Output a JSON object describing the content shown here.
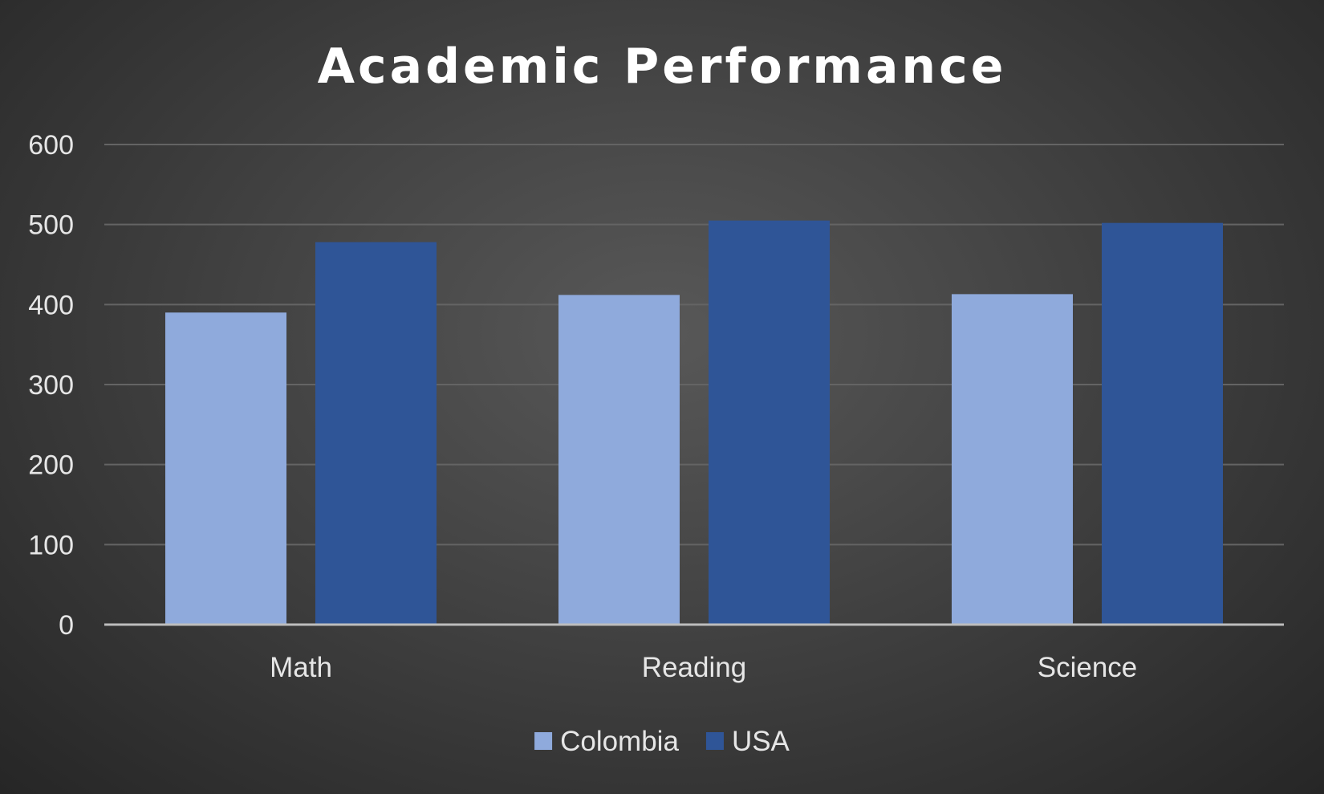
{
  "chart_data": {
    "type": "bar",
    "title": "Academic Performance",
    "xlabel": "",
    "ylabel": "",
    "categories": [
      "Math",
      "Reading",
      "Science"
    ],
    "series": [
      {
        "name": "Colombia",
        "values": [
          390,
          412,
          413
        ],
        "color": "#8faadc"
      },
      {
        "name": "USA",
        "values": [
          478,
          505,
          502
        ],
        "color": "#2f5597"
      }
    ],
    "ylim": [
      0,
      600
    ],
    "yticks": [
      "0",
      "100",
      "200",
      "300",
      "400",
      "500",
      "600"
    ],
    "grid": true,
    "legend_position": "bottom"
  },
  "colors": {
    "background": "#404040",
    "gridline": "#646464",
    "text": "#e6e6e6"
  }
}
